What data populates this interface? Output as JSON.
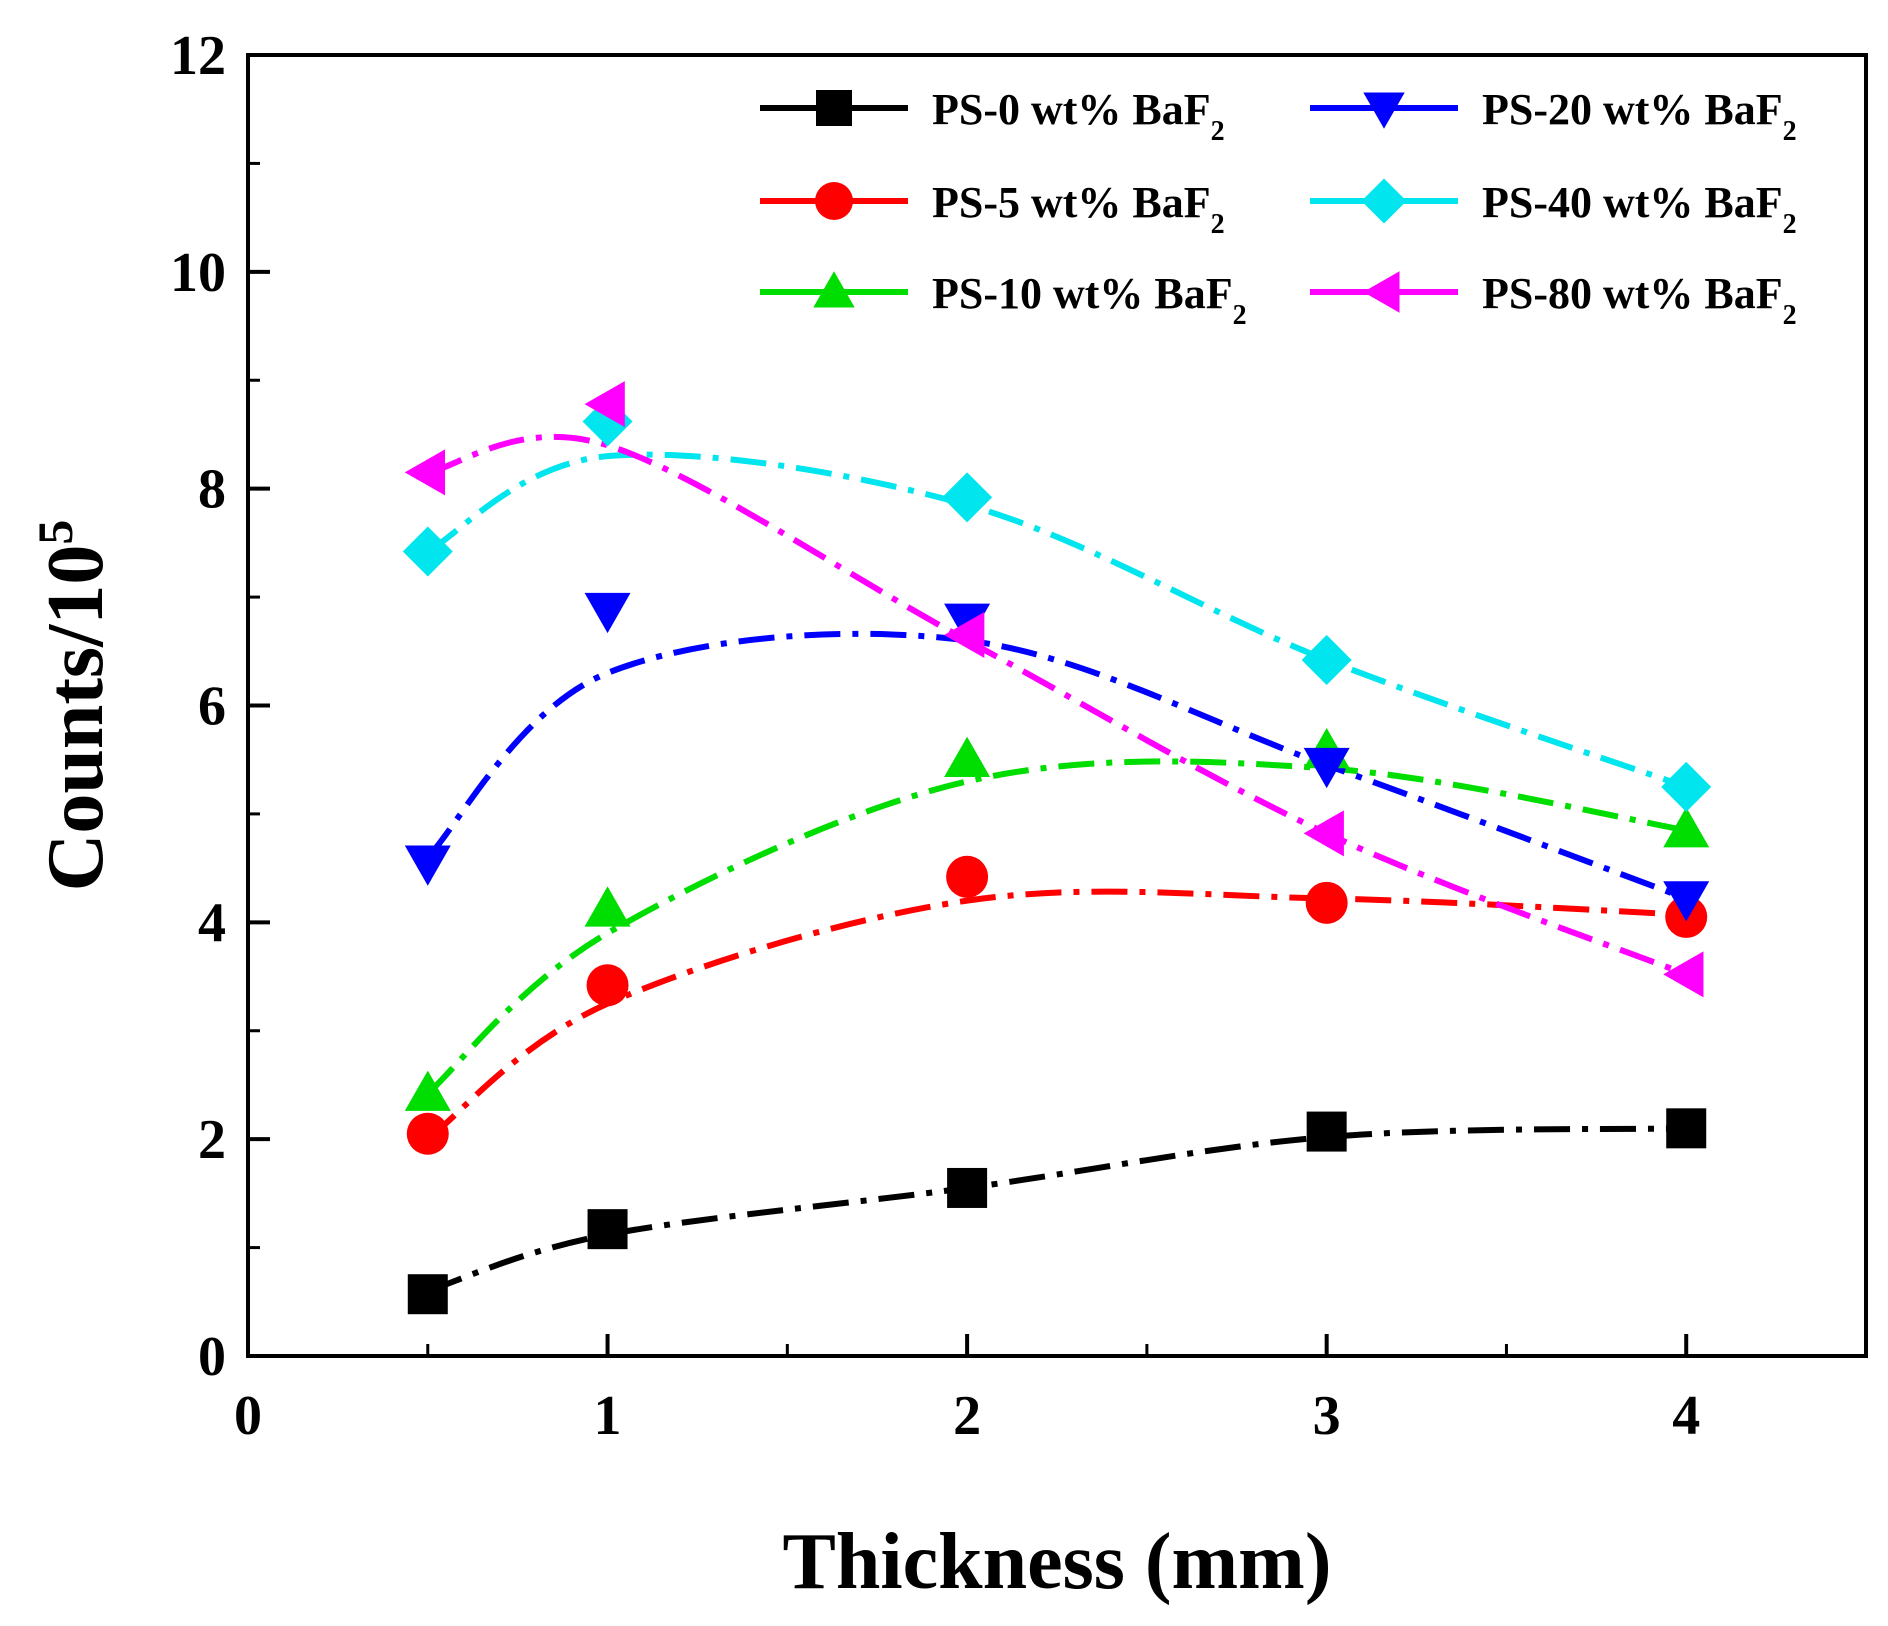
{
  "chart_data": {
    "type": "line",
    "xlabel": "Thickness (mm)",
    "ylabel": "Counts/10",
    "ylabel_sup": "5",
    "xlim": [
      0,
      4.5
    ],
    "ylim": [
      0,
      12
    ],
    "x_ticks": [
      0,
      1,
      2,
      3,
      4
    ],
    "y_ticks": [
      0,
      2,
      4,
      6,
      8,
      10,
      12
    ],
    "x": [
      0.5,
      1,
      2,
      3,
      4
    ],
    "legend_position": "top-right",
    "series": [
      {
        "name": "PS-0 wt% BaF",
        "subscript": "2",
        "marker": "square",
        "color": "#000000",
        "values": [
          0.57,
          1.17,
          1.55,
          2.07,
          2.1
        ],
        "fit": [
          0.6,
          1.12,
          1.55,
          2.02,
          2.1
        ]
      },
      {
        "name": "PS-5 wt% BaF",
        "subscript": "2",
        "marker": "circle",
        "color": "#ff0000",
        "values": [
          2.05,
          3.42,
          4.42,
          4.18,
          4.05
        ],
        "fit": [
          2.0,
          3.25,
          4.2,
          4.22,
          4.07
        ]
      },
      {
        "name": "PS-10 wt% BaF",
        "subscript": "2",
        "marker": "triangle-up",
        "color": "#00dd00",
        "values": [
          2.42,
          4.12,
          5.5,
          5.58,
          4.85
        ],
        "fit": [
          2.42,
          3.9,
          5.3,
          5.42,
          4.85
        ]
      },
      {
        "name": "PS-20 wt% BaF",
        "subscript": "2",
        "marker": "triangle-down",
        "color": "#0000ff",
        "values": [
          4.55,
          6.88,
          6.78,
          5.45,
          4.22
        ],
        "fit": [
          4.6,
          6.3,
          6.6,
          5.45,
          4.22
        ]
      },
      {
        "name": "PS-40 wt% BaF",
        "subscript": "2",
        "marker": "diamond",
        "color": "#00e5ee",
        "values": [
          7.42,
          8.62,
          7.92,
          6.42,
          5.25
        ],
        "fit": [
          7.42,
          8.3,
          7.85,
          6.42,
          5.25
        ]
      },
      {
        "name": "PS-80 wt% BaF",
        "subscript": "2",
        "marker": "triangle-left",
        "color": "#ff00ff",
        "values": [
          8.15,
          8.78,
          6.65,
          4.82,
          3.52
        ],
        "fit": [
          8.15,
          8.4,
          6.6,
          4.82,
          3.52
        ]
      }
    ]
  }
}
